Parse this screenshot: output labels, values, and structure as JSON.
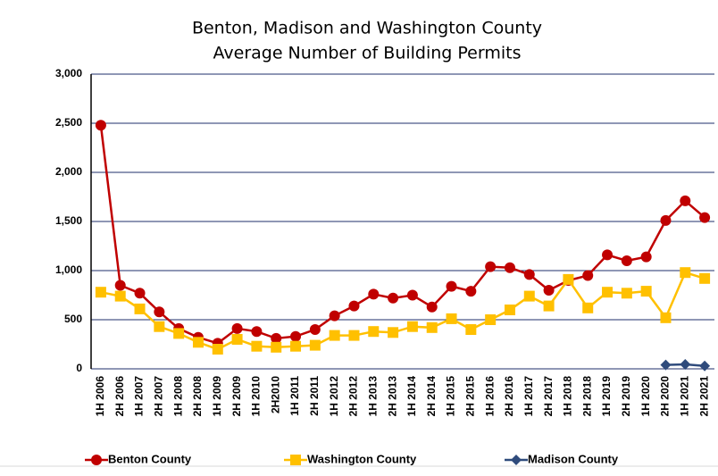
{
  "chart_data": {
    "type": "line",
    "title": "Benton, Madison and Washington County",
    "subtitle": "Average Number of Building Permits",
    "categories": [
      "1H 2006",
      "2H 2006",
      "1H 2007",
      "2H 2007",
      "1H 2008",
      "2H 2008",
      "1H 2009",
      "2H 2009",
      "1H 2010",
      "2H2010",
      "1H 2011",
      "2H 2011",
      "1H 2012",
      "2H 2012",
      "1H 2013",
      "2H 2013",
      "1H 2014",
      "2H 2014",
      "1H 2015",
      "2H 2015",
      "1H 2016",
      "2H 2016",
      "1H 2017",
      "2H 2017",
      "1H 2018",
      "2H 2018",
      "1H 2019",
      "2H 2019",
      "1H 2020",
      "2H 2020",
      "1H 2021",
      "2H 2021"
    ],
    "series": [
      {
        "name": "Benton County",
        "color": "#c00000",
        "marker": "circle",
        "values": [
          2480,
          850,
          770,
          580,
          410,
          320,
          260,
          410,
          380,
          310,
          330,
          400,
          540,
          640,
          760,
          720,
          750,
          630,
          840,
          790,
          1040,
          1030,
          960,
          800,
          900,
          950,
          1160,
          1100,
          1140,
          1510,
          1710,
          1540
        ]
      },
      {
        "name": "Washington County",
        "color": "#ffc000",
        "marker": "square",
        "values": [
          780,
          740,
          610,
          430,
          360,
          270,
          200,
          300,
          230,
          220,
          230,
          240,
          340,
          340,
          380,
          370,
          430,
          420,
          510,
          400,
          500,
          600,
          740,
          640,
          910,
          620,
          780,
          770,
          790,
          520,
          980,
          920
        ]
      },
      {
        "name": "Madison County",
        "color": "#2f4b7c",
        "marker": "diamond",
        "values": [
          null,
          null,
          null,
          null,
          null,
          null,
          null,
          null,
          null,
          null,
          null,
          null,
          null,
          null,
          null,
          null,
          null,
          null,
          null,
          null,
          null,
          null,
          null,
          null,
          null,
          null,
          null,
          null,
          null,
          40,
          45,
          30
        ]
      }
    ],
    "ylim": [
      0,
      3000
    ],
    "yticks": [
      0,
      500,
      {
        "value": 1000,
        "label": "1,000"
      },
      {
        "value": 1500,
        "label": "1,500"
      },
      {
        "value": 2000,
        "label": "2,000"
      },
      {
        "value": 2500,
        "label": "2,500"
      },
      {
        "value": 3000,
        "label": "3,000"
      }
    ],
    "grid": true,
    "legend": "bottom"
  }
}
